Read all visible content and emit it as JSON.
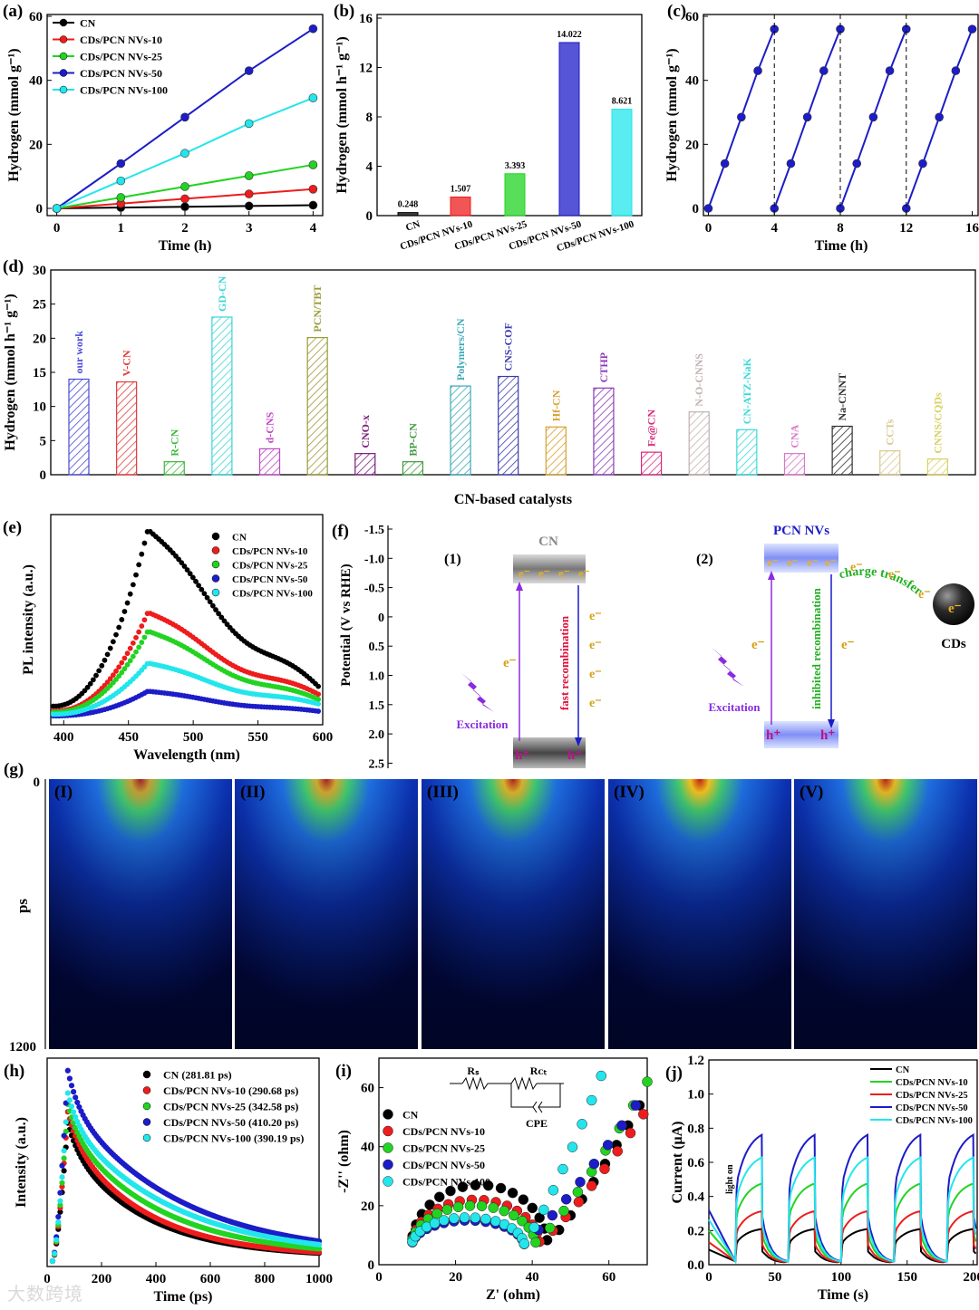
{
  "figure": {
    "watermark": "大数跨境"
  },
  "colors": {
    "CN": "#000000",
    "NV10": "#ee1c1c",
    "NV25": "#22d322",
    "NV50": "#1c1cc8",
    "NV100": "#22e6ec"
  },
  "chart_data": [
    {
      "id": "a",
      "panel": "(a)",
      "type": "line",
      "xlabel": "Time (h)",
      "ylabel": "Hydrogen (mmol g⁻¹)",
      "xlim": [
        0,
        4
      ],
      "ylim": [
        0,
        60
      ],
      "xticks": [
        0,
        1,
        2,
        3,
        4
      ],
      "yticks": [
        0,
        20,
        40,
        60
      ],
      "legend": "top-left",
      "x": [
        0,
        1,
        2,
        3,
        4
      ],
      "series": [
        {
          "name": "CN",
          "color": "#000000",
          "values": [
            0,
            0.25,
            0.5,
            0.75,
            1.0
          ]
        },
        {
          "name": "CDs/PCN NVs-10",
          "color": "#ee1c1c",
          "values": [
            0,
            1.5,
            3.0,
            4.5,
            6.0
          ]
        },
        {
          "name": "CDs/PCN NVs-25",
          "color": "#22d322",
          "values": [
            0,
            3.4,
            6.8,
            10.2,
            13.6
          ]
        },
        {
          "name": "CDs/PCN NVs-50",
          "color": "#1c1cc8",
          "values": [
            0,
            14.0,
            28.5,
            43.0,
            56.1
          ]
        },
        {
          "name": "CDs/PCN NVs-100",
          "color": "#22e6ec",
          "values": [
            0,
            8.6,
            17.2,
            26.5,
            34.5
          ]
        }
      ]
    },
    {
      "id": "b",
      "panel": "(b)",
      "type": "bar",
      "ylabel": "Hydrogen (mmol h⁻¹ g⁻¹)",
      "ylim": [
        0,
        16
      ],
      "yticks": [
        0,
        4,
        8,
        12,
        16
      ],
      "categories": [
        "CN",
        "CDs/PCN NVs-10",
        "CDs/PCN NVs-25",
        "CDs/PCN NVs-50",
        "CDs/PCN NVs-100"
      ],
      "values": [
        0.248,
        1.507,
        3.393,
        14.022,
        8.621
      ],
      "labels": [
        "0.248",
        "1.507",
        "3.393",
        "14.022",
        "8.621"
      ],
      "colors": [
        "#000000",
        "#ee1c1c",
        "#22d322",
        "#1c1cc8",
        "#22e6ec"
      ]
    },
    {
      "id": "c",
      "panel": "(c)",
      "type": "line",
      "xlabel": "Time (h)",
      "ylabel": "Hydrogen (mmol g⁻¹)",
      "xlim": [
        0,
        16
      ],
      "ylim": [
        0,
        60
      ],
      "xticks": [
        0,
        4,
        8,
        12,
        16
      ],
      "yticks": [
        0,
        20,
        40,
        60
      ],
      "cycles": [
        [
          0,
          0
        ],
        [
          1,
          14
        ],
        [
          2,
          28.5
        ],
        [
          3,
          43
        ],
        [
          4,
          56
        ]
      ],
      "cycle_count": 4,
      "cycle_length": 4,
      "color": "#1c1cc8"
    },
    {
      "id": "d",
      "panel": "(d)",
      "type": "bar",
      "xlabel": "CN-based catalysts",
      "ylabel": "Hydrogen (mmol h⁻¹ g⁻¹)",
      "ylim": [
        0,
        30
      ],
      "yticks": [
        0,
        5,
        10,
        15,
        20,
        25,
        30
      ],
      "categories": [
        "our work",
        "V-CN",
        "R-CN",
        "GD-CN",
        "d-CNS",
        "PCN/TBT",
        "CNO-x",
        "BP-CN",
        "Polymers/CN",
        "CNS-COF",
        "Hf-CN",
        "CTHP",
        "Fe@CN",
        "N-O-CNNS",
        "CN-ATZ-NaK",
        "CNA",
        "Na-CNNT",
        "CCTs",
        "CNNS/CQDs"
      ],
      "values": [
        14.0,
        13.6,
        1.9,
        23.1,
        3.8,
        20.1,
        3.1,
        1.9,
        13.0,
        14.4,
        7.0,
        12.7,
        3.3,
        9.2,
        6.6,
        3.1,
        7.1,
        3.5,
        2.3
      ],
      "colors": [
        "#4a4ad8",
        "#e23a3a",
        "#3db63d",
        "#3ad5d8",
        "#c146c9",
        "#9a9a38",
        "#7a1a7a",
        "#3d9a3d",
        "#3aa8b8",
        "#3a3ab0",
        "#d8a030",
        "#8a3ab8",
        "#d8287a",
        "#c0b0b0",
        "#3ad8d8",
        "#d878c8",
        "#303030",
        "#d8c890",
        "#d8d060"
      ]
    },
    {
      "id": "e",
      "panel": "(e)",
      "type": "line",
      "xlabel": "Wavelength (nm)",
      "ylabel": "PL intensity (a.u.)",
      "xlim": [
        390,
        600
      ],
      "xticks": [
        400,
        450,
        500,
        550,
        600
      ],
      "peak_x": 465,
      "series": [
        {
          "name": "CN",
          "color": "#000000",
          "peak": 1.0,
          "tail": 0.14
        },
        {
          "name": "CDs/PCN NVs-10",
          "color": "#ee1c1c",
          "peak": 0.56,
          "tail": 0.11
        },
        {
          "name": "CDs/PCN NVs-25",
          "color": "#22d322",
          "peak": 0.46,
          "tail": 0.085
        },
        {
          "name": "CDs/PCN NVs-50",
          "color": "#1c1cc8",
          "peak": 0.14,
          "tail": 0.03
        },
        {
          "name": "CDs/PCN NVs-100",
          "color": "#22e6ec",
          "peak": 0.29,
          "tail": 0.065
        }
      ]
    },
    {
      "id": "h",
      "panel": "(h)",
      "type": "line",
      "xlabel": "Time (ps)",
      "ylabel": "Intensity (a.u.)",
      "xlim": [
        0,
        1000
      ],
      "xticks": [
        0,
        200,
        400,
        600,
        800,
        1000
      ],
      "series": [
        {
          "name": "CN (281.81 ps)",
          "color": "#000000",
          "peak": 0.72,
          "tau": 282
        },
        {
          "name": "CDs/PCN NVs-10 (290.68 ps)",
          "color": "#ee1c1c",
          "peak": 0.78,
          "tau": 291
        },
        {
          "name": "CDs/PCN NVs-25 (342.58 ps)",
          "color": "#22d322",
          "peak": 0.82,
          "tau": 343
        },
        {
          "name": "CDs/PCN NVs-50 (410.20 ps)",
          "color": "#1c1cc8",
          "peak": 1.0,
          "tau": 410
        },
        {
          "name": "CDs/PCN NVs-100 (390.19 ps)",
          "color": "#22e6ec",
          "peak": 0.88,
          "tau": 390
        }
      ]
    },
    {
      "id": "i",
      "panel": "(i)",
      "type": "scatter",
      "xlabel": "Z' (ohm)",
      "ylabel": "-Z'' (ohm)",
      "xlim": [
        0,
        70
      ],
      "ylim": [
        0,
        70
      ],
      "xticks": [
        0,
        20,
        40,
        60
      ],
      "yticks": [
        0,
        20,
        40,
        60
      ],
      "circuit": {
        "rs": "Rₛ",
        "rct": "Rᴄₜ",
        "cpe": "CPE"
      },
      "series": [
        {
          "name": "CN",
          "color": "#000000",
          "arc_end": 44,
          "arc_height": 27,
          "tail_end": [
            68,
            54
          ]
        },
        {
          "name": "CDs/PCN NVs-10",
          "color": "#ee1c1c",
          "arc_end": 42,
          "arc_height": 22,
          "tail_end": [
            69,
            51
          ]
        },
        {
          "name": "CDs/PCN NVs-25",
          "color": "#22d322",
          "arc_end": 41,
          "arc_height": 20,
          "tail_end": [
            70,
            62
          ]
        },
        {
          "name": "CDs/PCN NVs-50",
          "color": "#1c1cc8",
          "arc_end": 38,
          "arc_height": 15,
          "tail_end": [
            67,
            54
          ]
        },
        {
          "name": "CDs/PCN NVs-100",
          "color": "#22e6ec",
          "arc_end": 38,
          "arc_height": 16,
          "tail_end": [
            58,
            64
          ]
        }
      ]
    },
    {
      "id": "j",
      "panel": "(j)",
      "type": "line",
      "xlabel": "Time (s)",
      "ylabel": "Current (μA)",
      "xlim": [
        0,
        200
      ],
      "ylim": [
        0,
        1.2
      ],
      "xticks": [
        0,
        50,
        100,
        150,
        200
      ],
      "yticks": [
        0.0,
        0.2,
        0.4,
        0.6,
        0.8,
        1.0,
        1.2
      ],
      "annotation": "light on",
      "on_times": [
        20,
        60,
        100,
        140,
        180
      ],
      "on_duration": 20,
      "series": [
        {
          "name": "CN",
          "color": "#000000",
          "level": 0.22
        },
        {
          "name": "CDs/PCN NVs-10",
          "color": "#22d322",
          "level": 0.5
        },
        {
          "name": "CDs/PCN NVs-25",
          "color": "#ee1c1c",
          "level": 0.33
        },
        {
          "name": "CDs/PCN NVs-50",
          "color": "#1c1cc8",
          "level": 0.8
        },
        {
          "name": "CDs/PCN NVs-100",
          "color": "#22e6ec",
          "level": 0.66
        }
      ]
    }
  ],
  "panel_f": {
    "label": "(f)",
    "ylabel": "Potential (V vs RHE)",
    "yticks": [
      "-1.5",
      "-1.0",
      "-0.5",
      "0",
      "0.5",
      "1.0",
      "1.5",
      "2.0",
      "2.5"
    ],
    "left": {
      "num": "(1)",
      "title": "CN",
      "excitation": "Excitation",
      "recomb": "fast recombination",
      "e": "e⁻",
      "h": "h⁺"
    },
    "right": {
      "num": "(2)",
      "title": "PCN NVs",
      "excitation": "Excitation",
      "recomb": "inhibited recombination",
      "transfer": "charge transfer",
      "cds": "CDs",
      "e": "e⁻",
      "h": "h⁺"
    }
  },
  "panel_g": {
    "label": "(g)",
    "ylabel": "ps",
    "y_top": "0",
    "y_bottom": "1200",
    "subpanels": [
      "(I)",
      "(II)",
      "(III)",
      "(IV)",
      "(V)"
    ],
    "intensity": [
      0.8,
      0.85,
      0.9,
      1.0,
      0.95
    ]
  }
}
